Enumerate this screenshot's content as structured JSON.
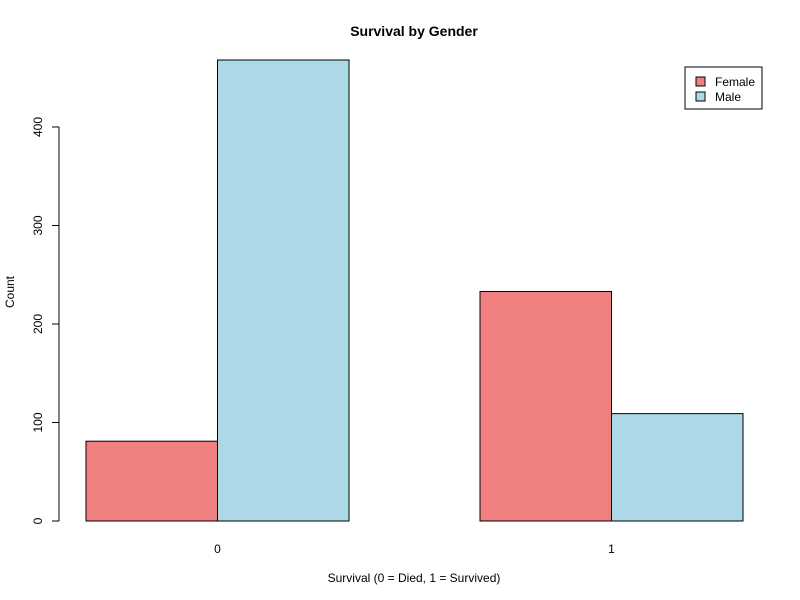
{
  "chart_data": {
    "type": "bar",
    "title": "Survival by Gender",
    "xlabel": "Survival (0 = Died, 1 = Survived)",
    "ylabel": "Count",
    "categories": [
      "0",
      "1"
    ],
    "series": [
      {
        "name": "Female",
        "color": "#F08080",
        "values": [
          81,
          233
        ]
      },
      {
        "name": "Male",
        "color": "#ADD8E6",
        "values": [
          468,
          109
        ]
      }
    ],
    "ylim": [
      0,
      468
    ],
    "yticks": [
      "0",
      "100",
      "200",
      "300",
      "400"
    ],
    "grid": false,
    "legend_position": "top-right"
  }
}
